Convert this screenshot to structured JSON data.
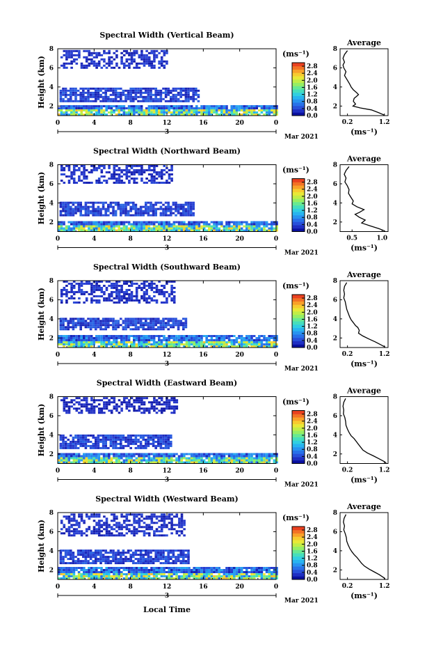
{
  "figure": {
    "xlabel": "Local Time"
  },
  "chart_data": [
    {
      "type": "heatmap",
      "title": "Spectral Width (Vertical Beam)",
      "ylabel": "Height (km)",
      "xlim": [
        0,
        24
      ],
      "ylim": [
        1,
        8
      ],
      "xticks": [
        "0",
        "4",
        "8",
        "12",
        "16",
        "20",
        "0"
      ],
      "yticks": [
        "2",
        "4",
        "6",
        "8"
      ],
      "date_label": "3",
      "month_label": "Mar 2021",
      "colorbar": {
        "unit": "(ms⁻¹)",
        "ticks": [
          "0.0",
          "0.4",
          "0.8",
          "1.2",
          "1.6",
          "2.0",
          "2.4",
          "2.8"
        ],
        "range": [
          0,
          3.0
        ]
      },
      "patches": [
        {
          "t0": 0.3,
          "t1": 12.1,
          "h0": 5.9,
          "h1": 7.8,
          "value": 0.3
        },
        {
          "t0": 0.2,
          "t1": 15.4,
          "h0": 2.4,
          "h1": 3.8,
          "value": 0.4
        },
        {
          "t0": 0.0,
          "t1": 24.0,
          "h0": 1.0,
          "h1": 2.0,
          "value": 0.8
        }
      ],
      "average": {
        "title": "Average",
        "xlabel": "(ms⁻¹)",
        "xticks": [
          "0.2",
          "1.2"
        ],
        "xlim": [
          0,
          1.3
        ],
        "ylim": [
          1,
          8
        ],
        "yticks": [
          "2",
          "4",
          "6",
          "8"
        ],
        "profile": [
          [
            0.2,
            7.8
          ],
          [
            0.12,
            7.4
          ],
          [
            0.08,
            7.0
          ],
          [
            0.12,
            6.6
          ],
          [
            0.08,
            6.3
          ],
          [
            0.1,
            6.0
          ],
          [
            0.16,
            5.6
          ],
          [
            0.12,
            5.2
          ],
          [
            0.2,
            4.7
          ],
          [
            0.26,
            4.3
          ],
          [
            0.3,
            4.0
          ],
          [
            0.36,
            3.7
          ],
          [
            0.45,
            3.4
          ],
          [
            0.5,
            3.2
          ],
          [
            0.44,
            3.0
          ],
          [
            0.38,
            2.8
          ],
          [
            0.36,
            2.5
          ],
          [
            0.42,
            2.2
          ],
          [
            0.35,
            2.0
          ],
          [
            0.55,
            1.8
          ],
          [
            0.85,
            1.6
          ],
          [
            1.05,
            1.3
          ],
          [
            1.2,
            1.05
          ]
        ]
      }
    },
    {
      "type": "heatmap",
      "title": "Spectral Width (Northward Beam)",
      "ylabel": "Height (km)",
      "xlim": [
        0,
        24
      ],
      "ylim": [
        1,
        8
      ],
      "xticks": [
        "0",
        "4",
        "8",
        "12",
        "16",
        "20",
        "0"
      ],
      "yticks": [
        "2",
        "4",
        "6",
        "8"
      ],
      "date_label": "3",
      "month_label": "Mar 2021",
      "colorbar": {
        "unit": "(ms⁻¹)",
        "ticks": [
          "0.0",
          "0.4",
          "0.8",
          "1.2",
          "1.6",
          "2.0",
          "2.4",
          "2.8"
        ],
        "range": [
          0,
          3.0
        ]
      },
      "patches": [
        {
          "t0": 0.3,
          "t1": 12.5,
          "h0": 6.0,
          "h1": 7.9,
          "value": 0.3
        },
        {
          "t0": 0.2,
          "t1": 15.0,
          "h0": 2.6,
          "h1": 4.0,
          "value": 0.4
        },
        {
          "t0": 0.0,
          "t1": 24.0,
          "h0": 1.0,
          "h1": 2.0,
          "value": 0.8
        }
      ],
      "average": {
        "title": "Average",
        "xlabel": "(ms⁻¹)",
        "xticks": [
          "0.5",
          "1.0"
        ],
        "xlim": [
          0.3,
          1.1
        ],
        "ylim": [
          1,
          8
        ],
        "yticks": [
          "2",
          "4",
          "6",
          "8"
        ],
        "profile": [
          [
            0.45,
            7.8
          ],
          [
            0.4,
            7.4
          ],
          [
            0.37,
            7.0
          ],
          [
            0.4,
            6.6
          ],
          [
            0.38,
            6.2
          ],
          [
            0.42,
            5.8
          ],
          [
            0.45,
            5.4
          ],
          [
            0.44,
            5.0
          ],
          [
            0.48,
            4.6
          ],
          [
            0.52,
            4.2
          ],
          [
            0.5,
            3.9
          ],
          [
            0.58,
            3.6
          ],
          [
            0.7,
            3.3
          ],
          [
            0.62,
            3.0
          ],
          [
            0.55,
            2.8
          ],
          [
            0.62,
            2.5
          ],
          [
            0.72,
            2.2
          ],
          [
            0.66,
            1.9
          ],
          [
            0.8,
            1.6
          ],
          [
            0.95,
            1.3
          ],
          [
            1.05,
            1.05
          ]
        ]
      }
    },
    {
      "type": "heatmap",
      "title": "Spectral Width (Southward Beam)",
      "ylabel": "Height (km)",
      "xlim": [
        0,
        24
      ],
      "ylim": [
        1,
        8
      ],
      "xticks": [
        "0",
        "4",
        "8",
        "12",
        "16",
        "20",
        "0"
      ],
      "yticks": [
        "2",
        "4",
        "6",
        "8"
      ],
      "date_label": "3",
      "month_label": "Mar 2021",
      "colorbar": {
        "unit": "(ms⁻¹)",
        "ticks": [
          "0.0",
          "0.4",
          "0.8",
          "1.2",
          "1.6",
          "2.0",
          "2.4",
          "2.8"
        ],
        "range": [
          0,
          3.0
        ]
      },
      "patches": [
        {
          "t0": 0.3,
          "t1": 12.8,
          "h0": 5.6,
          "h1": 7.9,
          "value": 0.3
        },
        {
          "t0": 0.2,
          "t1": 14.0,
          "h0": 2.8,
          "h1": 4.1,
          "value": 0.4
        },
        {
          "t0": 0.0,
          "t1": 24.0,
          "h0": 1.0,
          "h1": 2.1,
          "value": 0.8
        }
      ],
      "average": {
        "title": "Average",
        "xlabel": "(ms⁻¹)",
        "xticks": [
          "0.2",
          "1.2"
        ],
        "xlim": [
          0,
          1.3
        ],
        "ylim": [
          1,
          8
        ],
        "yticks": [
          "2",
          "4",
          "6",
          "8"
        ],
        "profile": [
          [
            0.18,
            7.8
          ],
          [
            0.12,
            7.4
          ],
          [
            0.1,
            7.0
          ],
          [
            0.12,
            6.6
          ],
          [
            0.1,
            6.2
          ],
          [
            0.14,
            5.8
          ],
          [
            0.16,
            5.4
          ],
          [
            0.18,
            5.0
          ],
          [
            0.22,
            4.6
          ],
          [
            0.26,
            4.2
          ],
          [
            0.3,
            3.9
          ],
          [
            0.36,
            3.6
          ],
          [
            0.42,
            3.3
          ],
          [
            0.48,
            3.1
          ],
          [
            0.52,
            2.8
          ],
          [
            0.5,
            2.5
          ],
          [
            0.62,
            2.2
          ],
          [
            0.78,
            1.9
          ],
          [
            0.95,
            1.6
          ],
          [
            1.1,
            1.3
          ],
          [
            1.22,
            1.05
          ]
        ]
      }
    },
    {
      "type": "heatmap",
      "title": "Spectral Width (Eastward Beam)",
      "ylabel": "Height (km)",
      "xlim": [
        0,
        24
      ],
      "ylim": [
        1,
        8
      ],
      "xticks": [
        "0",
        "4",
        "8",
        "12",
        "16",
        "20",
        "0"
      ],
      "yticks": [
        "2",
        "4",
        "6",
        "8"
      ],
      "date_label": "3",
      "month_label": "Mar 2021",
      "colorbar": {
        "unit": "(ms⁻¹)",
        "ticks": [
          "0.0",
          "0.4",
          "0.8",
          "1.2",
          "1.6",
          "2.0",
          "2.4",
          "2.8"
        ],
        "range": [
          0,
          3.0
        ]
      },
      "patches": [
        {
          "t0": 0.3,
          "t1": 13.0,
          "h0": 6.2,
          "h1": 7.9,
          "value": 0.25
        },
        {
          "t0": 0.2,
          "t1": 12.5,
          "h0": 2.5,
          "h1": 3.9,
          "value": 0.4
        },
        {
          "t0": 0.0,
          "t1": 24.0,
          "h0": 1.0,
          "h1": 2.0,
          "value": 0.8
        }
      ],
      "average": {
        "title": "Average",
        "xlabel": "(ms⁻¹)",
        "xticks": [
          "0.2",
          "1.2"
        ],
        "xlim": [
          0,
          1.3
        ],
        "ylim": [
          1,
          8
        ],
        "yticks": [
          "2",
          "4",
          "6",
          "8"
        ],
        "profile": [
          [
            0.15,
            7.8
          ],
          [
            0.1,
            7.4
          ],
          [
            0.08,
            7.0
          ],
          [
            0.1,
            6.6
          ],
          [
            0.09,
            6.2
          ],
          [
            0.13,
            5.8
          ],
          [
            0.15,
            5.4
          ],
          [
            0.16,
            5.0
          ],
          [
            0.2,
            4.6
          ],
          [
            0.25,
            4.2
          ],
          [
            0.3,
            3.9
          ],
          [
            0.38,
            3.6
          ],
          [
            0.44,
            3.3
          ],
          [
            0.5,
            3.0
          ],
          [
            0.56,
            2.7
          ],
          [
            0.62,
            2.4
          ],
          [
            0.74,
            2.1
          ],
          [
            0.9,
            1.8
          ],
          [
            1.05,
            1.5
          ],
          [
            1.2,
            1.2
          ],
          [
            1.25,
            1.05
          ]
        ]
      }
    },
    {
      "type": "heatmap",
      "title": "Spectral Width (Westward Beam)",
      "ylabel": "Height (km)",
      "xlim": [
        0,
        24
      ],
      "ylim": [
        1,
        8
      ],
      "xticks": [
        "0",
        "4",
        "8",
        "12",
        "16",
        "20",
        "0"
      ],
      "yticks": [
        "2",
        "4",
        "6",
        "8"
      ],
      "date_label": "3",
      "month_label": "Mar 2021",
      "colorbar": {
        "unit": "(ms⁻¹)",
        "ticks": [
          "0.0",
          "0.4",
          "0.8",
          "1.2",
          "1.6",
          "2.0",
          "2.4",
          "2.8"
        ],
        "range": [
          0,
          3.0
        ]
      },
      "patches": [
        {
          "t0": 0.3,
          "t1": 14.0,
          "h0": 5.5,
          "h1": 7.9,
          "value": 0.3
        },
        {
          "t0": 0.2,
          "t1": 14.5,
          "h0": 2.6,
          "h1": 4.0,
          "value": 0.4
        },
        {
          "t0": 0.0,
          "t1": 24.0,
          "h0": 1.0,
          "h1": 2.1,
          "value": 0.8
        }
      ],
      "average": {
        "title": "Average",
        "xlabel": "(ms⁻¹)",
        "xticks": [
          "0.2",
          "1.2"
        ],
        "xlim": [
          0,
          1.3
        ],
        "ylim": [
          1,
          8
        ],
        "yticks": [
          "2",
          "4",
          "6",
          "8"
        ],
        "profile": [
          [
            0.16,
            7.8
          ],
          [
            0.11,
            7.4
          ],
          [
            0.09,
            7.0
          ],
          [
            0.12,
            6.6
          ],
          [
            0.1,
            6.2
          ],
          [
            0.14,
            5.8
          ],
          [
            0.17,
            5.4
          ],
          [
            0.18,
            5.0
          ],
          [
            0.22,
            4.6
          ],
          [
            0.27,
            4.2
          ],
          [
            0.32,
            3.9
          ],
          [
            0.38,
            3.6
          ],
          [
            0.46,
            3.3
          ],
          [
            0.52,
            3.0
          ],
          [
            0.58,
            2.7
          ],
          [
            0.66,
            2.4
          ],
          [
            0.78,
            2.1
          ],
          [
            0.92,
            1.8
          ],
          [
            1.06,
            1.5
          ],
          [
            1.18,
            1.2
          ],
          [
            1.22,
            1.05
          ]
        ]
      }
    }
  ]
}
